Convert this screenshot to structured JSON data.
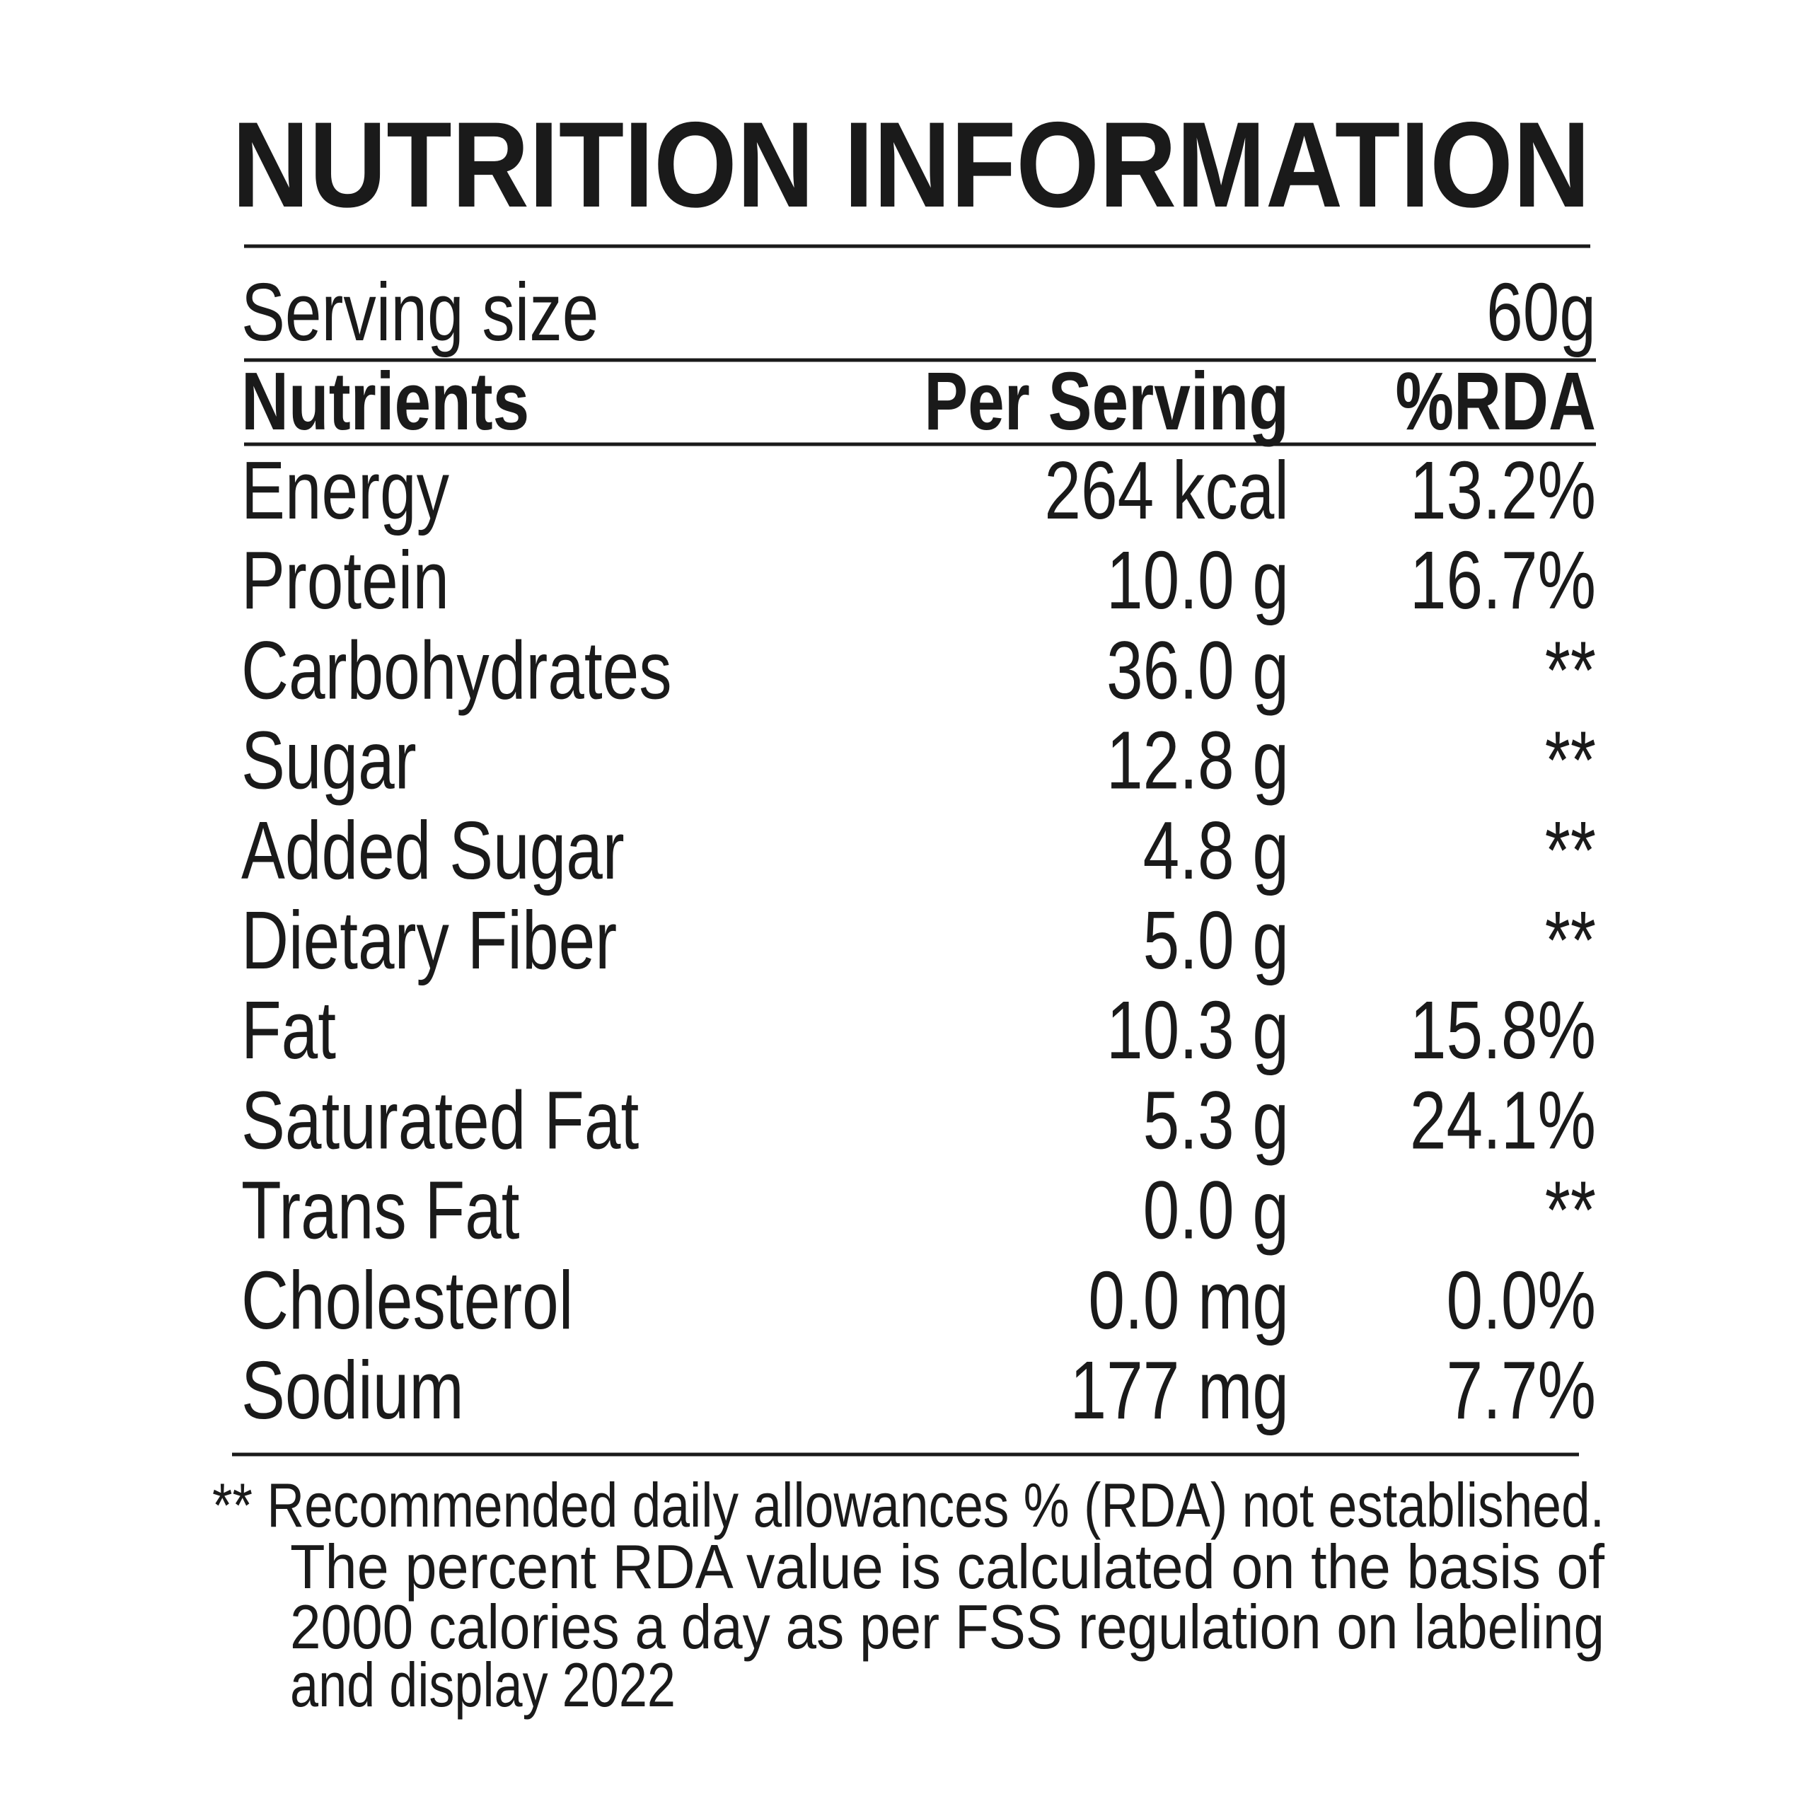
{
  "title": "NUTRITION INFORMATION",
  "serving": {
    "label": "Serving  size",
    "value": "60g"
  },
  "table": {
    "header": [
      "Nutrients",
      "Per Serving",
      "%RDA"
    ],
    "rows": [
      [
        "Energy",
        "264 kcal",
        "13.2%"
      ],
      [
        "Protein",
        "10.0 g",
        "16.7%"
      ],
      [
        "Carbohydrates",
        "36.0 g",
        "**"
      ],
      [
        "Sugar",
        "12.8 g",
        "**"
      ],
      [
        "Added Sugar",
        "4.8 g",
        "**"
      ],
      [
        "Dietary Fiber",
        "5.0 g",
        "**"
      ],
      [
        "Fat",
        "10.3 g",
        "15.8%"
      ],
      [
        "Saturated Fat",
        "5.3 g",
        "24.1%"
      ],
      [
        "Trans Fat",
        "0.0 g",
        "**"
      ],
      [
        "Cholesterol",
        "0.0 mg",
        "0.0%"
      ],
      [
        "Sodium",
        "177 mg",
        "7.7%"
      ]
    ]
  },
  "footnote": [
    "** Recommended daily allowances % (RDA) not established.",
    "The percent RDA value is calculated on the basis of",
    "2000 calories a day as per FSS regulation on labeling",
    "and display 2022"
  ]
}
